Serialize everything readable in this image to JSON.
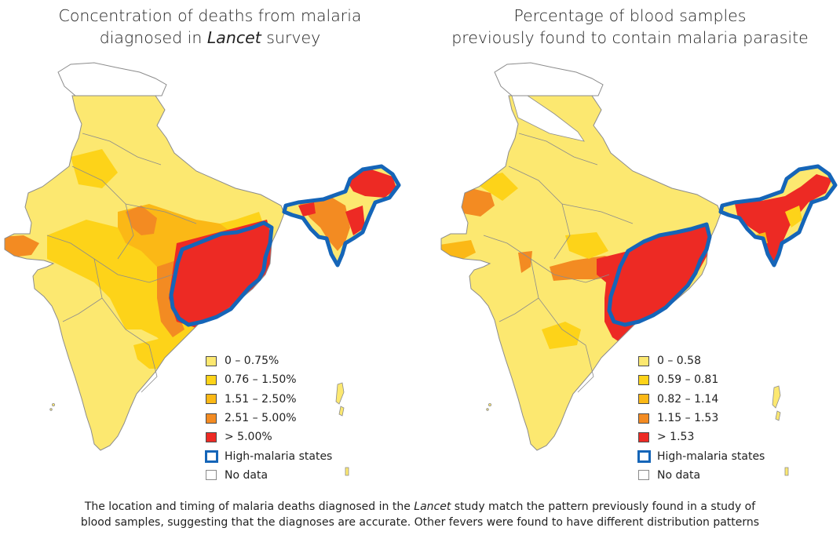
{
  "colors": {
    "bin1": "#fce870",
    "bin2": "#fdd319",
    "bin3": "#fbb816",
    "bin4": "#f38b22",
    "bin5": "#ed2a24",
    "high_malaria_outline": "#1565b8",
    "border": "#8c8c8c",
    "no_data": "#ffffff"
  },
  "left_map": {
    "title_line1": "Concentration of deaths from malaria",
    "title_line2_prefix": "diagnosed in ",
    "title_line2_italic": "Lancet",
    "title_line2_suffix": " survey",
    "legend": [
      {
        "label": "0 – 0.75%",
        "color": "#fce870"
      },
      {
        "label": "0.76  – 1.50%",
        "color": "#fdd319"
      },
      {
        "label": "1.51  – 2.50%",
        "color": "#fbb816"
      },
      {
        "label": "2.51  – 5.00%",
        "color": "#f38b22"
      },
      {
        "label": "> 5.00%",
        "color": "#ed2a24"
      }
    ],
    "legend_high_malaria": "High-malaria states",
    "legend_no_data": "No data"
  },
  "right_map": {
    "title_line1": "Percentage of blood samples",
    "title_line2": "previously found to contain malaria parasite",
    "legend": [
      {
        "label": "0 – 0.58",
        "color": "#fce870"
      },
      {
        "label": "0.59 – 0.81",
        "color": "#fdd319"
      },
      {
        "label": "0.82 – 1.14",
        "color": "#fbb816"
      },
      {
        "label": "1.15  – 1.53",
        "color": "#f38b22"
      },
      {
        "label": "> 1.53",
        "color": "#ed2a24"
      }
    ],
    "legend_high_malaria": "High-malaria states",
    "legend_no_data": "No data"
  },
  "caption": {
    "line1_prefix": "The location and timing of malaria deaths diagnosed in the ",
    "line1_italic": "Lancet",
    "line1_suffix": " study match the pattern previously found in a study of",
    "line2": "blood samples, suggesting that the diagnoses are accurate. Other fevers were found to have different distribution patterns"
  }
}
